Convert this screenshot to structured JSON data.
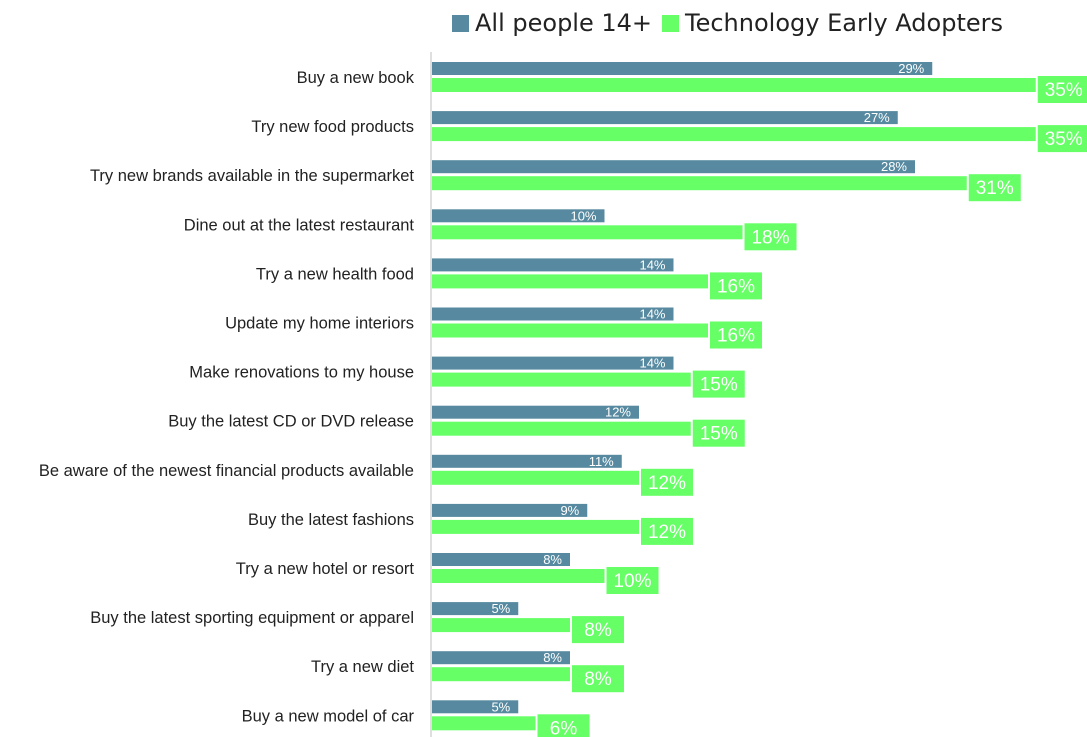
{
  "chart_data": {
    "type": "bar",
    "orientation": "horizontal",
    "title": "",
    "xlabel": "",
    "ylabel": "",
    "legend": "top",
    "grid": false,
    "xlim": [
      0,
      35
    ],
    "value_format": "percent",
    "categories": [
      "Buy a new book",
      "Try new food products",
      "Try new brands available in the supermarket",
      "Dine out at the latest restaurant",
      "Try a new health food",
      "Update my home interiors",
      "Make renovations to my house",
      "Buy the latest CD or DVD release",
      "Be aware of the newest financial products available",
      "Buy the latest fashions",
      "Try a new hotel or resort",
      "Buy the latest sporting equipment or apparel",
      "Try a new diet",
      "Buy a new model of car"
    ],
    "series": [
      {
        "name": "All people 14+",
        "color": "#578aa0",
        "values": [
          29,
          27,
          28,
          10,
          14,
          14,
          14,
          12,
          11,
          9,
          8,
          5,
          8,
          5
        ]
      },
      {
        "name": "Technology Early Adopters",
        "color": "#66ff66",
        "values": [
          35,
          35,
          31,
          18,
          16,
          16,
          15,
          15,
          12,
          12,
          10,
          8,
          8,
          6
        ]
      }
    ]
  }
}
